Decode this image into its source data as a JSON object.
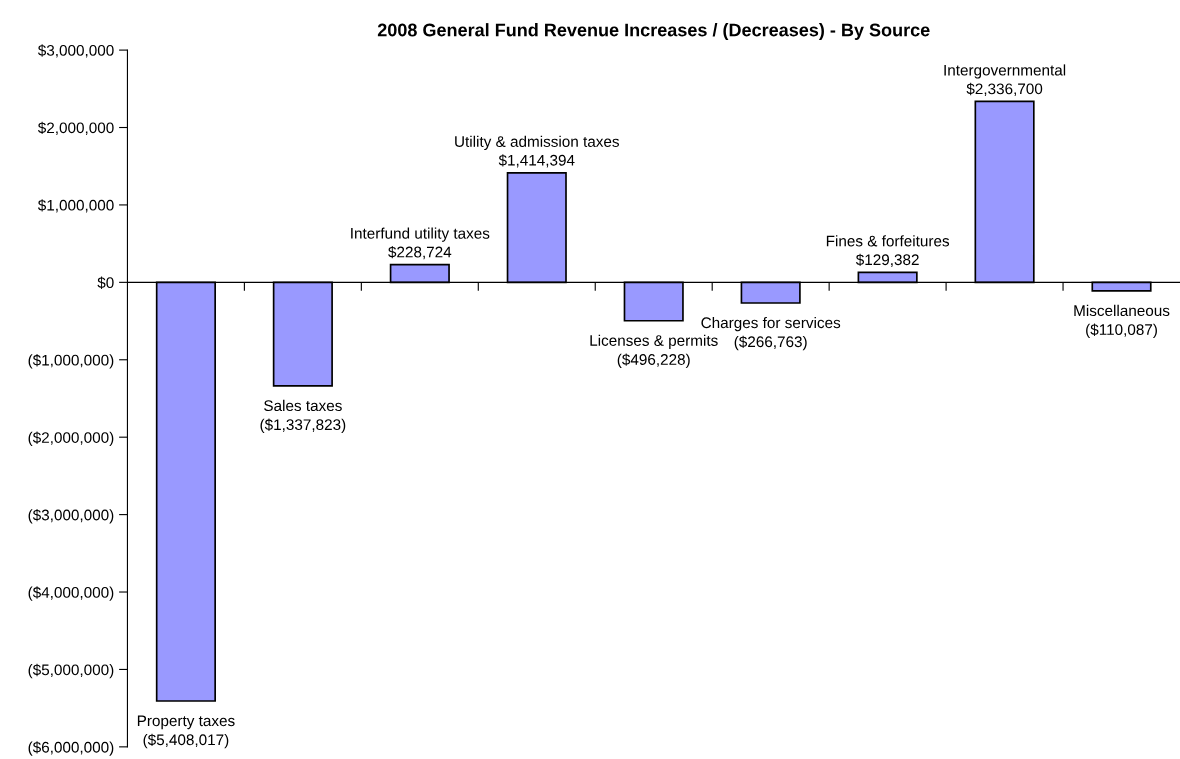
{
  "chart_data": {
    "type": "bar",
    "title": "2008 General Fund Revenue Increases / (Decreases) - By Source",
    "categories": [
      "Property taxes",
      "Sales taxes",
      "Interfund utility taxes",
      "Utility & admission taxes",
      "Licenses & permits",
      "Charges for services",
      "Fines & forfeitures",
      "Intergovernmental",
      "Miscellaneous"
    ],
    "values": [
      -5408017,
      -1337823,
      228724,
      1414394,
      -496228,
      -266763,
      129382,
      2336700,
      -110087
    ],
    "value_labels": [
      "($5,408,017)",
      "($1,337,823)",
      "$228,724",
      "$1,414,394",
      "($496,228)",
      "($266,763)",
      "$129,382",
      "$2,336,700",
      "($110,087)"
    ],
    "color": "#9999ff",
    "ylim": [
      -6000000,
      3000000
    ],
    "yticks": [
      {
        "value": 3000000,
        "label": "$3,000,000"
      },
      {
        "value": 2000000,
        "label": "$2,000,000"
      },
      {
        "value": 1000000,
        "label": "$1,000,000"
      },
      {
        "value": 0,
        "label": "$0"
      },
      {
        "value": -1000000,
        "label": "($1,000,000)"
      },
      {
        "value": -2000000,
        "label": "($2,000,000)"
      },
      {
        "value": -3000000,
        "label": "($3,000,000)"
      },
      {
        "value": -4000000,
        "label": "($4,000,000)"
      },
      {
        "value": -5000000,
        "label": "($5,000,000)"
      },
      {
        "value": -6000000,
        "label": "($6,000,000)"
      }
    ],
    "tick_labels": "y"
  }
}
